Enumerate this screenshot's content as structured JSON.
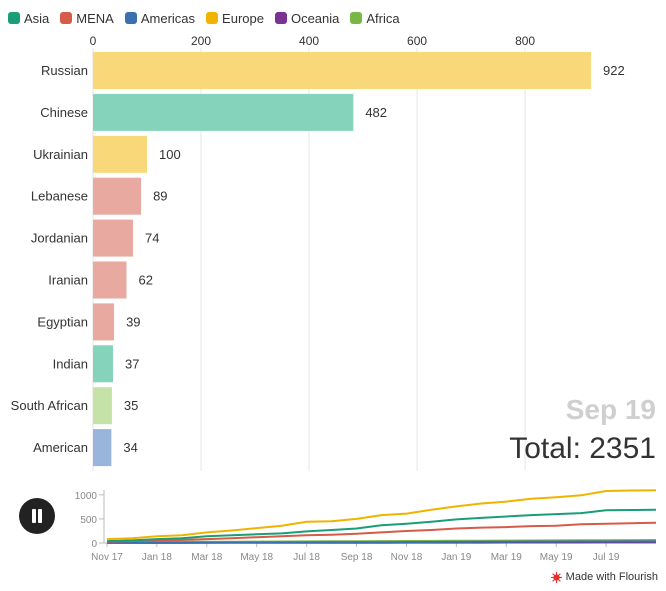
{
  "legend": [
    {
      "label": "Asia",
      "color": "#1a9e77"
    },
    {
      "label": "MENA",
      "color": "#d45c48"
    },
    {
      "label": "Americas",
      "color": "#3a6fb0"
    },
    {
      "label": "Europe",
      "color": "#f0b400"
    },
    {
      "label": "Oceania",
      "color": "#7b3294"
    },
    {
      "label": "Africa",
      "color": "#7ab648"
    }
  ],
  "date_label": "Sep 19",
  "total_prefix": "Total: ",
  "total_value": "2351",
  "credit": "Made with Flourish",
  "chart_data": [
    {
      "type": "bar",
      "orientation": "horizontal",
      "xlim": [
        0,
        922
      ],
      "x_ticks": [
        "0",
        "200",
        "400",
        "600",
        "800"
      ],
      "grid": true,
      "categories": [
        "Russian",
        "Chinese",
        "Ukrainian",
        "Lebanese",
        "Jordanian",
        "Iranian",
        "Egyptian",
        "Indian",
        "South African",
        "American"
      ],
      "values": [
        922,
        482,
        100,
        89,
        74,
        62,
        39,
        37,
        35,
        34
      ],
      "value_labels": [
        "922",
        "482",
        "100",
        "89",
        "74",
        "62",
        "39",
        "37",
        "35",
        "34"
      ],
      "regions": [
        "Europe",
        "Asia",
        "Europe",
        "MENA",
        "MENA",
        "MENA",
        "MENA",
        "Asia",
        "Africa",
        "Americas"
      ],
      "bar_colors": [
        "#f8d878",
        "#86d3bc",
        "#f8d878",
        "#e8a9a0",
        "#e8a9a0",
        "#e8a9a0",
        "#e8a9a0",
        "#86d3bc",
        "#c5e3a8",
        "#9ab5dc"
      ]
    },
    {
      "type": "line",
      "ylim": [
        0,
        1100
      ],
      "y_ticks": [
        "0",
        "500",
        "1000"
      ],
      "x_ticks": [
        "Nov 17",
        "Jan 18",
        "Mar 18",
        "May 18",
        "Jul 18",
        "Sep 18",
        "Nov 18",
        "Jan 19",
        "Mar 19",
        "May 19",
        "Jul 19"
      ],
      "x": [
        "Nov 17",
        "Dec 17",
        "Jan 18",
        "Feb 18",
        "Mar 18",
        "Apr 18",
        "May 18",
        "Jun 18",
        "Jul 18",
        "Aug 18",
        "Sep 18",
        "Oct 18",
        "Nov 18",
        "Dec 18",
        "Jan 19",
        "Feb 19",
        "Mar 19",
        "Apr 19",
        "May 19",
        "Jun 19",
        "Jul 19",
        "Aug 19",
        "Sep 19"
      ],
      "series": [
        {
          "name": "Europe",
          "color": "#f0b400",
          "values": [
            80,
            100,
            140,
            160,
            220,
            260,
            310,
            360,
            440,
            450,
            500,
            580,
            610,
            690,
            760,
            820,
            860,
            920,
            950,
            990,
            1080,
            1090,
            1095
          ]
        },
        {
          "name": "Asia",
          "color": "#1a9e77",
          "values": [
            40,
            55,
            80,
            100,
            140,
            160,
            180,
            200,
            240,
            270,
            300,
            370,
            400,
            440,
            490,
            520,
            550,
            580,
            600,
            620,
            680,
            685,
            690
          ]
        },
        {
          "name": "MENA",
          "color": "#d45c48",
          "values": [
            30,
            40,
            55,
            65,
            80,
            100,
            120,
            140,
            160,
            170,
            190,
            220,
            250,
            270,
            300,
            320,
            330,
            350,
            360,
            390,
            400,
            410,
            420
          ]
        },
        {
          "name": "Americas",
          "color": "#3a6fb0",
          "values": [
            5,
            6,
            7,
            8,
            9,
            10,
            11,
            12,
            13,
            14,
            15,
            17,
            19,
            21,
            23,
            25,
            27,
            29,
            30,
            31,
            32,
            33,
            34
          ]
        },
        {
          "name": "Africa",
          "color": "#7ab648",
          "values": [
            20,
            20,
            22,
            24,
            26,
            28,
            30,
            32,
            34,
            36,
            38,
            40,
            42,
            44,
            46,
            48,
            50,
            52,
            54,
            56,
            58,
            60,
            62
          ]
        },
        {
          "name": "Oceania",
          "color": "#7b3294",
          "values": [
            2,
            2,
            3,
            3,
            4,
            4,
            5,
            5,
            6,
            6,
            7,
            7,
            8,
            8,
            9,
            9,
            10,
            10,
            11,
            11,
            12,
            12,
            13
          ]
        }
      ]
    }
  ]
}
